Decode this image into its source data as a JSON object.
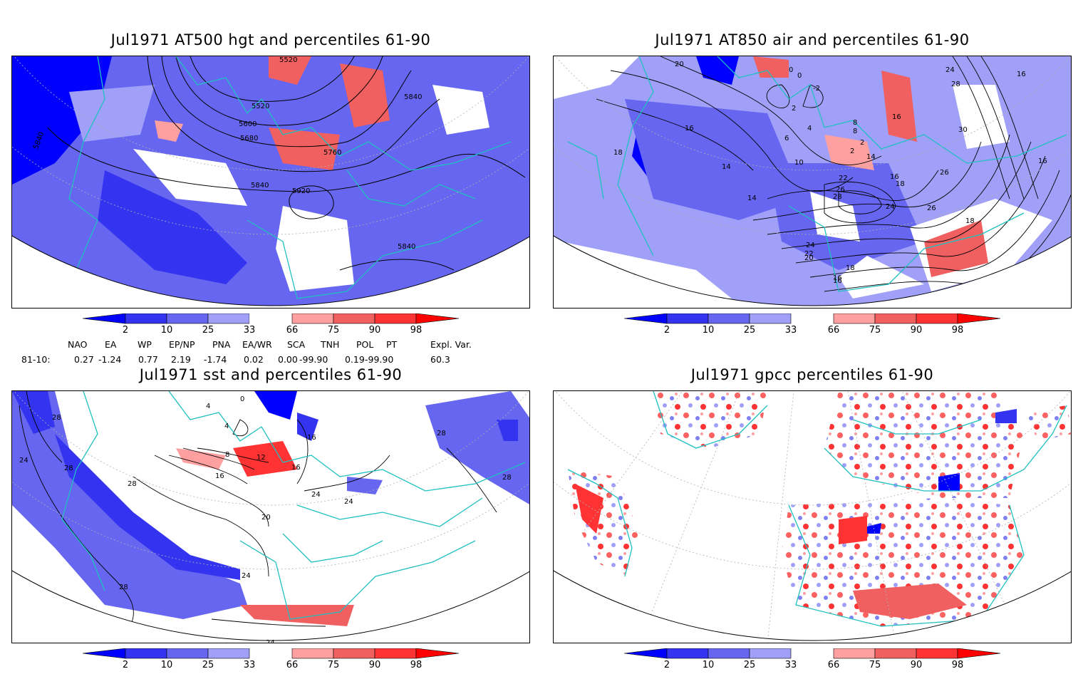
{
  "panels": [
    {
      "title": "Jul1971 AT500 hgt and percentiles 61-90",
      "contour_labels": [
        "5520",
        "5600",
        "5680",
        "5760",
        "5840",
        "5840",
        "5840",
        "5920",
        "5840",
        "5520"
      ]
    },
    {
      "title": "Jul1971 AT850 air and percentiles 61-90",
      "contour_labels": [
        "20",
        "18",
        "0",
        "0",
        "-2",
        "2",
        "4",
        "6",
        "8",
        "10",
        "14",
        "14",
        "16",
        "18",
        "16",
        "16",
        "22",
        "26",
        "28",
        "24",
        "26",
        "24",
        "22",
        "20",
        "18",
        "16",
        "18",
        "26",
        "30",
        "28",
        "24",
        "16",
        "16",
        "2",
        "16",
        "14",
        "2",
        "8"
      ]
    },
    {
      "title": "Jul1971 sst and percentiles 61-90",
      "contour_labels": [
        "28",
        "24",
        "28",
        "28",
        "20",
        "16",
        "12",
        "8",
        "16",
        "16",
        "24",
        "24",
        "24",
        "28",
        "24",
        "28",
        "28",
        "0",
        "4",
        "4"
      ]
    },
    {
      "title": "Jul1971 gpcc percentiles 61-90",
      "contour_labels": []
    }
  ],
  "colorbar": {
    "ticks": [
      "2",
      "10",
      "25",
      "33",
      "66",
      "75",
      "90",
      "98"
    ],
    "colors": {
      "lt2": "#0000ff",
      "c2_10": "#3333f0",
      "c10_25": "#6666f0",
      "c25_33": "#a0a0f8",
      "c33_66": "#ffffff",
      "c66_75": "#ffa0a0",
      "c75_90": "#f06060",
      "c90_98": "#ff3333",
      "gt98": "#ff0000"
    }
  },
  "teleconnections": {
    "headers": [
      "NAO",
      "EA",
      "WP",
      "EP/NP",
      "PNA",
      "EA/WR",
      "SCA",
      "TNH",
      "POL",
      "PT",
      "Expl. Var."
    ],
    "row_label": "81-10:",
    "values": [
      "0.27",
      "-1.24",
      "0.77",
      "2.19",
      "-1.74",
      "0.02",
      "0.00",
      "-99.90",
      "0.19",
      "-99.90",
      "60.3"
    ]
  },
  "map_colors": {
    "coast": "#20c0c0",
    "contour": "#000000",
    "grid": "#b0b0b0"
  }
}
